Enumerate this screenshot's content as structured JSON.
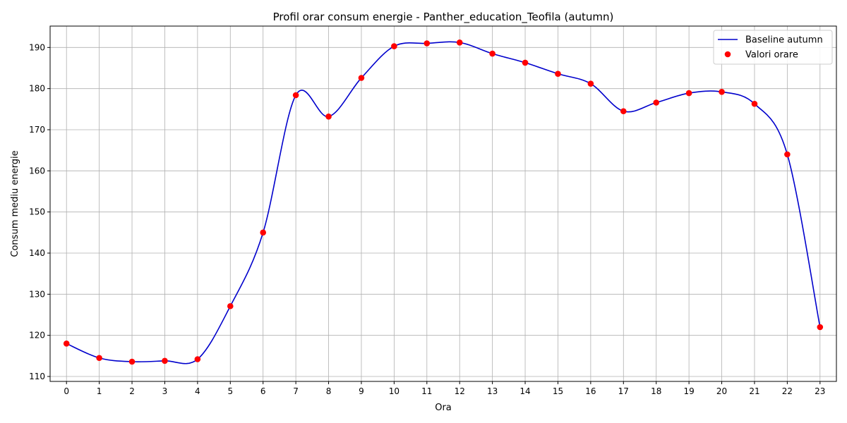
{
  "chart_data": {
    "type": "line",
    "title": "Profil orar consum energie - Panther_education_Teofila (autumn)",
    "xlabel": "Ora",
    "ylabel": "Consum mediu energie",
    "x": [
      0,
      1,
      2,
      3,
      4,
      5,
      6,
      7,
      8,
      9,
      10,
      11,
      12,
      13,
      14,
      15,
      16,
      17,
      18,
      19,
      20,
      21,
      22,
      23
    ],
    "x_ticks": [
      0,
      1,
      2,
      3,
      4,
      5,
      6,
      7,
      8,
      9,
      10,
      11,
      12,
      13,
      14,
      15,
      16,
      17,
      18,
      19,
      20,
      21,
      22,
      23
    ],
    "y_ticks": [
      110,
      120,
      130,
      140,
      150,
      160,
      170,
      180,
      190
    ],
    "xlim": [
      -0.5,
      23.5
    ],
    "ylim": [
      108.8,
      195.2
    ],
    "grid": true,
    "legend_position": "top-right",
    "series": [
      {
        "name": "Baseline autumn",
        "kind": "smooth-line",
        "color": "#0000cc",
        "values": [
          118.0,
          114.5,
          113.6,
          113.8,
          114.2,
          127.1,
          145.0,
          178.4,
          173.2,
          182.6,
          190.3,
          191.0,
          191.2,
          188.5,
          186.3,
          183.6,
          181.2,
          174.5,
          176.6,
          178.9,
          179.2,
          176.3,
          164.0,
          122.0
        ]
      },
      {
        "name": "Valori orare",
        "kind": "scatter",
        "color": "#ff0000",
        "values": [
          118.0,
          114.5,
          113.6,
          113.8,
          114.2,
          127.1,
          145.0,
          178.4,
          173.2,
          182.6,
          190.3,
          191.0,
          191.2,
          188.5,
          186.3,
          183.6,
          181.2,
          174.5,
          176.6,
          178.9,
          179.2,
          176.3,
          164.0,
          122.0
        ]
      }
    ]
  }
}
